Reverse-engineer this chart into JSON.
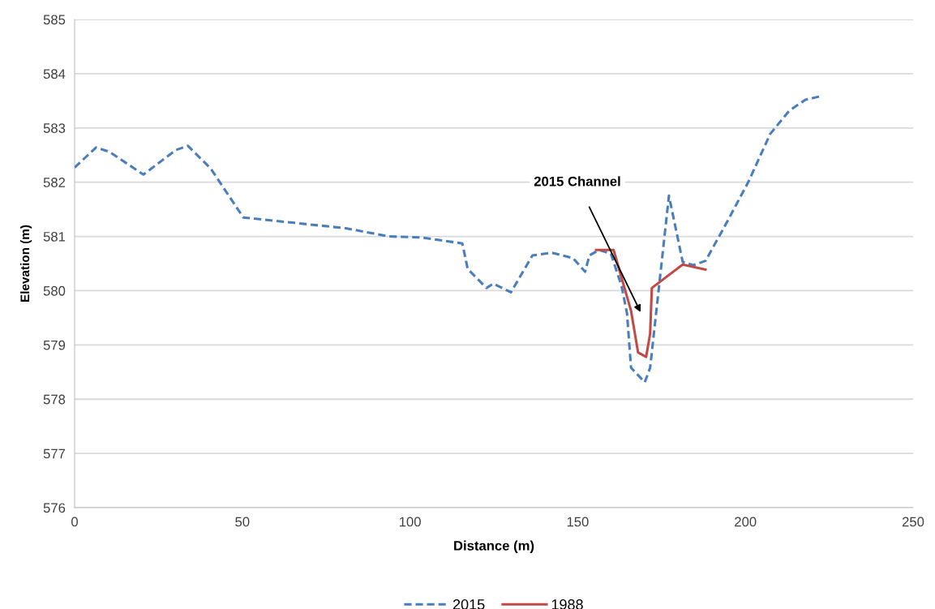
{
  "chart_data": {
    "type": "line",
    "xlabel": "Distance (m)",
    "ylabel": "Elevation (m)",
    "xlim": [
      0,
      250
    ],
    "xticks": [
      0,
      50,
      100,
      150,
      200,
      250
    ],
    "ylim": [
      576,
      585
    ],
    "yticks": [
      576,
      577,
      578,
      579,
      580,
      581,
      582,
      583,
      584,
      585
    ],
    "grid": "y",
    "legend": "bottom",
    "marker": "none",
    "annotations": [
      "2015 Channel"
    ],
    "series": [
      {
        "name": "2015",
        "color": "#4a7ebb",
        "line_style": "dashed",
        "x": [
          0,
          6.4,
          10.4,
          20.5,
          30.1,
          33.8,
          40.6,
          50.3,
          65.6,
          80.9,
          93.8,
          103.5,
          115.6,
          117.2,
          122.8,
          124.8,
          130.1,
          136.5,
          142.2,
          148.6,
          152.2,
          153.5,
          156.3,
          159.9,
          163.1,
          164.7,
          165.9,
          170.0,
          171.6,
          177.2,
          181.3,
          184.5,
          188.1,
          193.7,
          201.0,
          207.4,
          213.1,
          217.9,
          222.8
        ],
        "values": [
          582.27,
          582.64,
          582.56,
          582.14,
          582.59,
          582.67,
          582.25,
          581.35,
          581.25,
          581.15,
          581.0,
          580.98,
          580.87,
          580.4,
          580.05,
          580.13,
          579.97,
          580.65,
          580.7,
          580.6,
          580.35,
          580.65,
          580.75,
          580.68,
          580.08,
          579.58,
          578.58,
          578.31,
          578.58,
          581.75,
          580.53,
          580.47,
          580.55,
          581.17,
          582.02,
          582.89,
          583.32,
          583.52,
          583.59
        ]
      },
      {
        "name": "1988",
        "color": "#be4b48",
        "line_style": "solid",
        "x": [
          155.5,
          160.7,
          165.9,
          168.0,
          170.4,
          171.6,
          172.1,
          181.3,
          188.1
        ],
        "values": [
          580.75,
          580.75,
          579.63,
          578.86,
          578.78,
          579.21,
          580.05,
          580.48,
          580.39
        ]
      }
    ]
  }
}
